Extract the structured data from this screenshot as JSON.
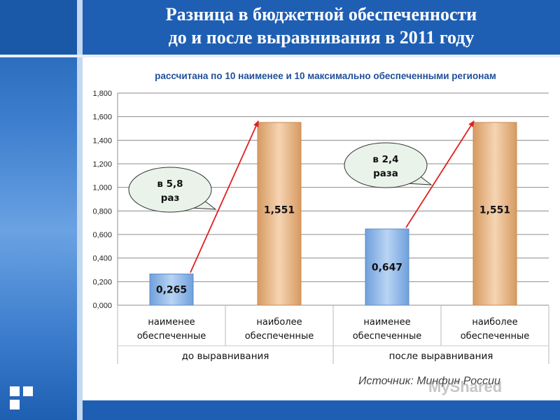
{
  "title": {
    "line1": "Разница в бюджетной обеспеченности",
    "line2": "до и после выравнивания в 2011 году"
  },
  "source": "Источник: Минфин России",
  "watermark": "MyShared",
  "colors": {
    "header": "#1f5fb3",
    "least_bar": "#a9c8ee",
    "most_bar": "#e8b98d",
    "arrow": "#e02020"
  },
  "chart_data": {
    "type": "bar",
    "subtitle": "рассчитана по 10 наименее и 10 максимально обеспеченными регионам",
    "categories": [
      "наименее обеспеченные",
      "наиболее обеспеченные",
      "наименее обеспеченные",
      "наиболее обеспеченные"
    ],
    "category_lines": [
      [
        "наименее",
        "обеспеченные"
      ],
      [
        "наиболее",
        "обеспеченные"
      ],
      [
        "наименее",
        "обеспеченные"
      ],
      [
        "наиболее",
        "обеспеченные"
      ]
    ],
    "groups": [
      "до выравнивания",
      "после выравнивания"
    ],
    "values": [
      0.265,
      1.551,
      0.647,
      1.551
    ],
    "value_labels": [
      "0,265",
      "1,551",
      "0,647",
      "1,551"
    ],
    "bar_kinds": [
      "least",
      "most",
      "least",
      "most"
    ],
    "ylim": [
      0,
      1.8
    ],
    "yticks": [
      0,
      0.2,
      0.4,
      0.6,
      0.8,
      1.0,
      1.2,
      1.4,
      1.6,
      1.8
    ],
    "ytick_labels": [
      "0,000",
      "0,200",
      "0,400",
      "0,600",
      "0,800",
      "1,000",
      "1,200",
      "1,400",
      "1,600",
      "1,800"
    ],
    "grid": true,
    "annotations": [
      {
        "lines": [
          "в 5,8",
          "раз"
        ],
        "from_bar": 0,
        "to_bar": 1
      },
      {
        "lines": [
          "в 2,4",
          "раза"
        ],
        "from_bar": 2,
        "to_bar": 3
      }
    ]
  }
}
